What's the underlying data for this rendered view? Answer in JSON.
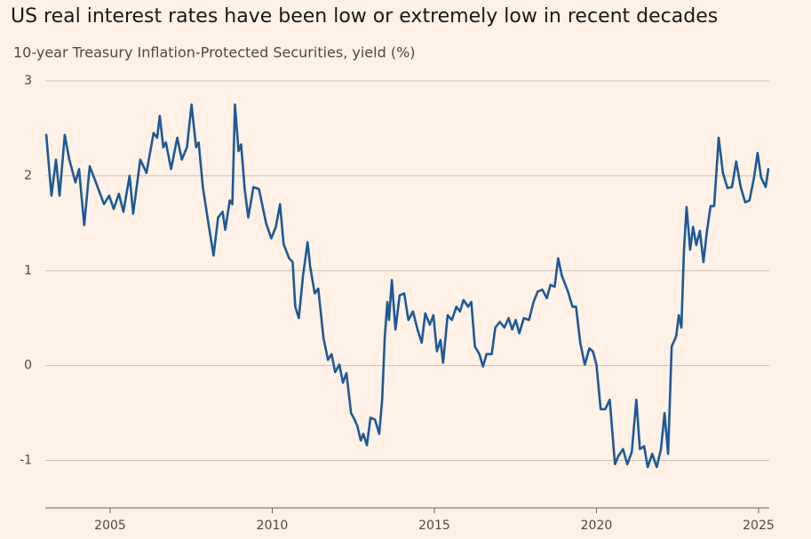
{
  "chart_data": {
    "type": "line",
    "title": "US real interest rates have been low or extremely low in recent decades",
    "subtitle": "10-year Treasury Inflation-Protected Securities, yield (%)",
    "x": [
      2003.03,
      2003.19,
      2003.33,
      2003.44,
      2003.6,
      2003.74,
      2003.93,
      2004.04,
      2004.2,
      2004.37,
      2004.56,
      2004.81,
      2004.97,
      2005.11,
      2005.27,
      2005.41,
      2005.6,
      2005.71,
      2005.93,
      2006.12,
      2006.34,
      2006.45,
      2006.53,
      2006.64,
      2006.72,
      2006.88,
      2007.07,
      2007.21,
      2007.37,
      2007.51,
      2007.65,
      2007.73,
      2007.86,
      2008.03,
      2008.19,
      2008.33,
      2008.47,
      2008.55,
      2008.69,
      2008.77,
      2008.85,
      2008.96,
      2009.04,
      2009.15,
      2009.26,
      2009.42,
      2009.59,
      2009.81,
      2009.97,
      2010.11,
      2010.24,
      2010.35,
      2010.52,
      2010.63,
      2010.71,
      2010.82,
      2010.95,
      2011.09,
      2011.17,
      2011.31,
      2011.42,
      2011.58,
      2011.72,
      2011.83,
      2011.94,
      2012.07,
      2012.18,
      2012.29,
      2012.43,
      2012.51,
      2012.62,
      2012.73,
      2012.81,
      2012.92,
      2013.03,
      2013.17,
      2013.3,
      2013.39,
      2013.47,
      2013.55,
      2013.6,
      2013.69,
      2013.8,
      2013.93,
      2014.07,
      2014.2,
      2014.34,
      2014.48,
      2014.61,
      2014.72,
      2014.86,
      2014.97,
      2015.08,
      2015.19,
      2015.27,
      2015.41,
      2015.54,
      2015.68,
      2015.79,
      2015.9,
      2016.04,
      2016.14,
      2016.25,
      2016.39,
      2016.5,
      2016.61,
      2016.77,
      2016.88,
      2017.02,
      2017.16,
      2017.29,
      2017.4,
      2017.51,
      2017.62,
      2017.76,
      2017.92,
      2018.06,
      2018.19,
      2018.33,
      2018.47,
      2018.58,
      2018.71,
      2018.82,
      2018.93,
      2019.12,
      2019.26,
      2019.37,
      2019.5,
      2019.64,
      2019.78,
      2019.89,
      2020.0,
      2020.13,
      2020.27,
      2020.41,
      2020.57,
      2020.68,
      2020.82,
      2020.95,
      2021.09,
      2021.23,
      2021.34,
      2021.47,
      2021.58,
      2021.72,
      2021.86,
      2021.99,
      2022.1,
      2022.21,
      2022.32,
      2022.46,
      2022.54,
      2022.62,
      2022.7,
      2022.78,
      2022.89,
      2022.98,
      2023.08,
      2023.19,
      2023.3,
      2023.41,
      2023.52,
      2023.63,
      2023.77,
      2023.9,
      2024.04,
      2024.18,
      2024.31,
      2024.45,
      2024.59,
      2024.72,
      2024.86,
      2024.97,
      2025.08,
      2025.22,
      2025.3
    ],
    "series": [
      {
        "name": "10-year TIPS yield",
        "color": "#1d5a96",
        "values": [
          2.43,
          1.79,
          2.17,
          1.79,
          2.43,
          2.17,
          1.93,
          2.07,
          1.48,
          2.1,
          1.93,
          1.7,
          1.79,
          1.65,
          1.81,
          1.62,
          2.0,
          1.6,
          2.17,
          2.03,
          2.45,
          2.4,
          2.63,
          2.3,
          2.35,
          2.07,
          2.4,
          2.17,
          2.3,
          2.75,
          2.3,
          2.35,
          1.88,
          1.5,
          1.16,
          1.56,
          1.62,
          1.43,
          1.74,
          1.7,
          2.75,
          2.26,
          2.33,
          1.86,
          1.56,
          1.88,
          1.86,
          1.5,
          1.34,
          1.46,
          1.7,
          1.28,
          1.13,
          1.09,
          0.62,
          0.5,
          0.95,
          1.3,
          1.04,
          0.76,
          0.81,
          0.29,
          0.06,
          0.12,
          -0.07,
          0.01,
          -0.18,
          -0.08,
          -0.5,
          -0.55,
          -0.63,
          -0.79,
          -0.72,
          -0.84,
          -0.55,
          -0.57,
          -0.72,
          -0.36,
          0.29,
          0.67,
          0.48,
          0.9,
          0.38,
          0.74,
          0.76,
          0.48,
          0.57,
          0.38,
          0.24,
          0.55,
          0.43,
          0.53,
          0.15,
          0.27,
          0.03,
          0.53,
          0.48,
          0.62,
          0.57,
          0.69,
          0.62,
          0.67,
          0.2,
          0.12,
          -0.01,
          0.12,
          0.12,
          0.4,
          0.46,
          0.4,
          0.5,
          0.38,
          0.48,
          0.34,
          0.5,
          0.48,
          0.67,
          0.78,
          0.8,
          0.71,
          0.85,
          0.83,
          1.13,
          0.95,
          0.78,
          0.62,
          0.62,
          0.24,
          0.01,
          0.18,
          0.15,
          0.01,
          -0.46,
          -0.46,
          -0.36,
          -1.04,
          -0.95,
          -0.88,
          -1.04,
          -0.91,
          -0.36,
          -0.88,
          -0.85,
          -1.07,
          -0.93,
          -1.07,
          -0.88,
          -0.5,
          -0.93,
          0.2,
          0.31,
          0.53,
          0.4,
          1.22,
          1.67,
          1.22,
          1.46,
          1.27,
          1.42,
          1.09,
          1.42,
          1.68,
          1.68,
          2.4,
          2.03,
          1.87,
          1.88,
          2.15,
          1.88,
          1.72,
          1.74,
          1.98,
          2.24,
          1.98,
          1.88,
          2.07
        ]
      }
    ],
    "xlim": [
      2003,
      2025.33
    ],
    "xticks": [
      2005,
      2010,
      2015,
      2020,
      2025
    ],
    "ylim": [
      -1.5,
      3
    ],
    "yticks": [
      -1,
      0,
      1,
      2,
      3
    ],
    "grid": true
  }
}
